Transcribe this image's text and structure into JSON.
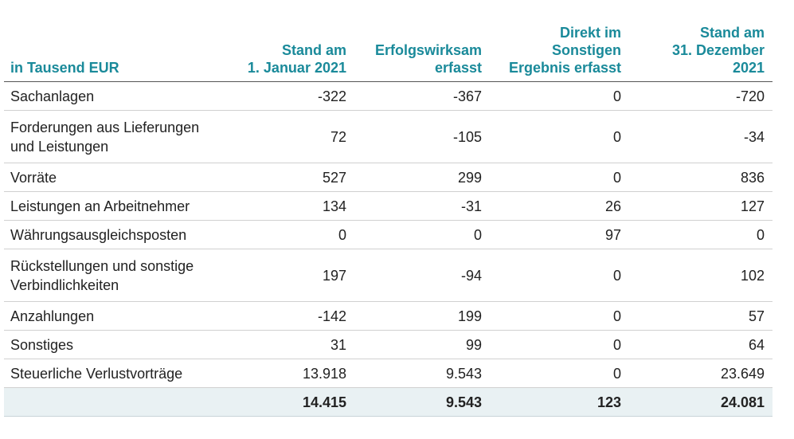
{
  "table": {
    "headers": {
      "col1": "in Tausend EUR",
      "col2": [
        "Stand am",
        "1. Januar 2021"
      ],
      "col3": [
        "Erfolgswirksam",
        "erfasst"
      ],
      "col4": [
        "Direkt im",
        "Sonstigen",
        "Ergebnis erfasst"
      ],
      "col5": [
        "Stand am",
        "31. Dezember",
        "2021"
      ]
    },
    "rows": [
      {
        "label": [
          "Sachanlagen"
        ],
        "values": [
          "-322",
          "-367",
          "0",
          "-720"
        ]
      },
      {
        "label": [
          "Forderungen aus Lieferungen",
          "und Leistungen"
        ],
        "values": [
          "72",
          "-105",
          "0",
          "-34"
        ]
      },
      {
        "label": [
          "Vorräte"
        ],
        "values": [
          "527",
          "299",
          "0",
          "836"
        ]
      },
      {
        "label": [
          "Leistungen an Arbeitnehmer"
        ],
        "values": [
          "134",
          "-31",
          "26",
          "127"
        ]
      },
      {
        "label": [
          "Währungsausgleichsposten"
        ],
        "values": [
          "0",
          "0",
          "97",
          "0"
        ]
      },
      {
        "label": [
          "Rückstellungen und sonstige",
          "Verbindlichkeiten"
        ],
        "values": [
          "197",
          "-94",
          "0",
          "102"
        ]
      },
      {
        "label": [
          "Anzahlungen"
        ],
        "values": [
          "-142",
          "199",
          "0",
          "57"
        ]
      },
      {
        "label": [
          "Sonstiges"
        ],
        "values": [
          "31",
          "99",
          "0",
          "64"
        ]
      },
      {
        "label": [
          "Steuerliche Verlustvorträge"
        ],
        "values": [
          "13.918",
          "9.543",
          "0",
          "23.649"
        ]
      }
    ],
    "total": {
      "label": "",
      "values": [
        "14.415",
        "9.543",
        "123",
        "24.081"
      ]
    }
  },
  "colors": {
    "header_text": "#1a8a9a",
    "total_background": "#e9f1f3"
  }
}
